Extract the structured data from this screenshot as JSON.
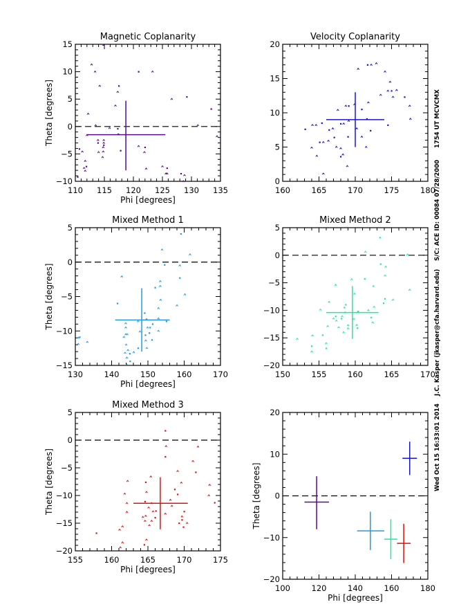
{
  "side_annotation": {
    "timestamp": "Wed Oct 15 16:33:01 2014",
    "author": "J.C. Kasper (jkasper@cfa.harvard.edu)",
    "spacecraft": "S/C: ACE ID: 00084 07/28/2000",
    "time": "1754 UT MCVCMX"
  },
  "chart_data": [
    {
      "type": "scatter",
      "title": "Magnetic Coplanarity",
      "xlabel": "Phi [degrees]",
      "ylabel": "Theta [degrees]",
      "xlim": [
        110,
        135
      ],
      "ylim": [
        -10,
        15
      ],
      "xticks": [
        110,
        115,
        120,
        125,
        130,
        135
      ],
      "xminor": 1,
      "yticks": [
        -10,
        -5,
        0,
        5,
        10,
        15
      ],
      "yminor": 1,
      "color": "#5a0a8a",
      "zero_line": true,
      "mean": {
        "x": 118.7,
        "y": -1.5,
        "xrange": [
          112.0,
          125.5
        ],
        "yrange": [
          -8.0,
          4.7
        ]
      },
      "points": [
        [
          114.8,
          14.9
        ],
        [
          112.8,
          11.3
        ],
        [
          113.4,
          10.0
        ],
        [
          120.9,
          10.0
        ],
        [
          123.3,
          10.0
        ],
        [
          114.2,
          7.4
        ],
        [
          117.5,
          7.4
        ],
        [
          117.3,
          6.3
        ],
        [
          126.6,
          5.0
        ],
        [
          129.2,
          5.4
        ],
        [
          116.9,
          3.8
        ],
        [
          112.2,
          2.3
        ],
        [
          133.4,
          3.2
        ],
        [
          113.5,
          0.2
        ],
        [
          115.9,
          -0.3
        ],
        [
          117.3,
          -0.4
        ],
        [
          131.1,
          0.2
        ],
        [
          112.0,
          -1.6
        ],
        [
          117.4,
          -1.4
        ],
        [
          134.4,
          -1.8
        ],
        [
          113.9,
          -2.5
        ],
        [
          113.9,
          -3.0
        ],
        [
          114.9,
          -2.5
        ],
        [
          114.9,
          -3.0
        ],
        [
          114.9,
          -3.4
        ],
        [
          114.8,
          -3.8
        ],
        [
          120.9,
          -3.6
        ],
        [
          122.0,
          -3.8
        ],
        [
          114.0,
          -4.7
        ],
        [
          114.8,
          -4.6
        ],
        [
          117.8,
          -4.4
        ],
        [
          121.9,
          -4.7
        ],
        [
          114.7,
          -5.6
        ],
        [
          110.7,
          -4.1
        ],
        [
          111.2,
          -4.6
        ],
        [
          111.7,
          -6.3
        ],
        [
          111.9,
          -7.3
        ],
        [
          111.5,
          -7.6
        ],
        [
          111.7,
          -8.1
        ],
        [
          110.4,
          -9.2
        ],
        [
          122.2,
          -7.7
        ],
        [
          125.0,
          -7.3
        ],
        [
          125.8,
          -7.6
        ],
        [
          125.6,
          -8.6
        ],
        [
          125.8,
          -8.6
        ],
        [
          128.2,
          -8.6
        ],
        [
          128.8,
          -8.9
        ],
        [
          128.6,
          -10.0
        ]
      ]
    },
    {
      "type": "scatter",
      "title": "Velocity Coplanarity",
      "xlabel": "",
      "ylabel": "",
      "xlim": [
        160,
        180
      ],
      "ylim": [
        0,
        20
      ],
      "xticks": [
        160,
        165,
        170,
        175,
        180
      ],
      "xminor": 1,
      "yticks": [
        0,
        5,
        10,
        15,
        20
      ],
      "yminor": 1,
      "color": "#1414d2",
      "zero_line": false,
      "mean": {
        "x": 170.0,
        "y": 9.0,
        "xrange": [
          166.0,
          174.0
        ],
        "yrange": [
          5.0,
          13.0
        ]
      },
      "points": [
        [
          163.1,
          7.6
        ],
        [
          164.1,
          8.2
        ],
        [
          164.6,
          8.2
        ],
        [
          165.4,
          8.5
        ],
        [
          164.0,
          4.9
        ],
        [
          164.7,
          3.7
        ],
        [
          165.1,
          5.7
        ],
        [
          165.6,
          5.7
        ],
        [
          165.6,
          1.1
        ],
        [
          166.4,
          7.5
        ],
        [
          166.9,
          7.7
        ],
        [
          166.3,
          5.9
        ],
        [
          167.1,
          6.4
        ],
        [
          167.4,
          5.0
        ],
        [
          167.6,
          10.4
        ],
        [
          168.0,
          8.4
        ],
        [
          168.4,
          8.4
        ],
        [
          168.7,
          11.0
        ],
        [
          169.1,
          11.0
        ],
        [
          169.1,
          8.8
        ],
        [
          168.0,
          4.8
        ],
        [
          168.0,
          3.6
        ],
        [
          168.3,
          3.9
        ],
        [
          168.9,
          2.2
        ],
        [
          169.0,
          6.5
        ],
        [
          169.9,
          11.2
        ],
        [
          170.2,
          7.7
        ],
        [
          170.9,
          10.5
        ],
        [
          170.9,
          6.5
        ],
        [
          170.4,
          16.4
        ],
        [
          171.7,
          17.0
        ],
        [
          172.2,
          17.0
        ],
        [
          172.9,
          17.2
        ],
        [
          171.6,
          9.1
        ],
        [
          171.8,
          11.5
        ],
        [
          171.5,
          5.0
        ],
        [
          172.1,
          7.4
        ],
        [
          173.5,
          12.6
        ],
        [
          174.1,
          16.0
        ],
        [
          174.5,
          8.2
        ],
        [
          174.5,
          13.2
        ],
        [
          174.8,
          14.5
        ],
        [
          175.0,
          13.2
        ],
        [
          175.2,
          12.3
        ],
        [
          175.7,
          13.3
        ],
        [
          176.8,
          12.3
        ],
        [
          177.5,
          11.0
        ],
        [
          177.6,
          9.1
        ]
      ]
    },
    {
      "type": "scatter",
      "title": "Mixed Method 1",
      "xlabel": "Phi [degrees]",
      "ylabel": "Theta [degrees]",
      "xlim": [
        130,
        170
      ],
      "ylim": [
        -15,
        5
      ],
      "xticks": [
        130,
        140,
        150,
        160,
        170
      ],
      "xminor": 2,
      "yticks": [
        -15,
        -10,
        -5,
        0,
        5
      ],
      "yminor": 1,
      "color": "#1e9be6",
      "zero_line": true,
      "mean": {
        "x": 148.3,
        "y": -8.4,
        "xrange": [
          141.0,
          156.0
        ],
        "yrange": [
          -13.0,
          -3.8
        ]
      },
      "points": [
        [
          159.1,
          4.1
        ],
        [
          153.9,
          1.8
        ],
        [
          161.6,
          1.1
        ],
        [
          154.6,
          -0.4
        ],
        [
          158.8,
          -0.5
        ],
        [
          142.8,
          -2.1
        ],
        [
          158.8,
          -2.3
        ],
        [
          153.4,
          -2.8
        ],
        [
          153.4,
          -3.5
        ],
        [
          152.0,
          -3.7
        ],
        [
          160.2,
          -4.7
        ],
        [
          153.5,
          -5.5
        ],
        [
          141.6,
          -6.0
        ],
        [
          158.0,
          -6.3
        ],
        [
          152.9,
          -6.7
        ],
        [
          149.1,
          -7.4
        ],
        [
          149.6,
          -8.3
        ],
        [
          152.9,
          -8.2
        ],
        [
          155.1,
          -8.6
        ],
        [
          143.9,
          -8.9
        ],
        [
          147.3,
          -8.6
        ],
        [
          151.3,
          -9.0
        ],
        [
          143.9,
          -9.5
        ],
        [
          149.9,
          -9.5
        ],
        [
          150.6,
          -9.5
        ],
        [
          147.8,
          -10.1
        ],
        [
          152.9,
          -10.0
        ],
        [
          150.4,
          -10.3
        ],
        [
          143.9,
          -10.5
        ],
        [
          144.3,
          -10.5
        ],
        [
          149.3,
          -10.6
        ],
        [
          143.4,
          -10.9
        ],
        [
          149.4,
          -11.4
        ],
        [
          151.1,
          -11.3
        ],
        [
          144.0,
          -12.0
        ],
        [
          149.7,
          -12.5
        ],
        [
          147.3,
          -12.5
        ],
        [
          144.5,
          -12.8
        ],
        [
          146.1,
          -13.1
        ],
        [
          145.0,
          -13.3
        ],
        [
          143.7,
          -13.2
        ],
        [
          144.2,
          -13.9
        ],
        [
          145.1,
          -14.4
        ],
        [
          144.2,
          -14.9
        ],
        [
          130.8,
          -11.0
        ],
        [
          131.2,
          -10.9
        ],
        [
          130.8,
          -11.9
        ],
        [
          133.3,
          -11.6
        ]
      ]
    },
    {
      "type": "scatter",
      "title": "Mixed Method 2",
      "xlabel": "",
      "ylabel": "",
      "xlim": [
        150,
        170
      ],
      "ylim": [
        -20,
        5
      ],
      "xticks": [
        150,
        155,
        160,
        165,
        170
      ],
      "xminor": 1,
      "yticks": [
        -20,
        -15,
        -10,
        -5,
        0,
        5
      ],
      "yminor": 1,
      "color": "#1eeb9b",
      "zero_line": true,
      "mean": {
        "x": 159.6,
        "y": -10.4,
        "xrange": [
          156.0,
          163.2
        ],
        "yrange": [
          -15.2,
          -5.6
        ]
      },
      "points": [
        [
          163.4,
          3.2
        ],
        [
          161.4,
          0.6
        ],
        [
          167.2,
          0.1
        ],
        [
          163.5,
          -1.6
        ],
        [
          164.2,
          -2.1
        ],
        [
          164.1,
          -3.7
        ],
        [
          161.3,
          -4.3
        ],
        [
          159.5,
          -4.4
        ],
        [
          157.3,
          -5.4
        ],
        [
          162.5,
          -5.6
        ],
        [
          167.5,
          -6.3
        ],
        [
          159.9,
          -7.0
        ],
        [
          164.1,
          -7.9
        ],
        [
          165.2,
          -8.1
        ],
        [
          156.4,
          -8.5
        ],
        [
          163.9,
          -8.7
        ],
        [
          158.7,
          -9.0
        ],
        [
          162.6,
          -9.4
        ],
        [
          158.5,
          -9.5
        ],
        [
          155.2,
          -9.9
        ],
        [
          158.6,
          -10.4
        ],
        [
          160.4,
          -10.2
        ],
        [
          160.3,
          -10.4
        ],
        [
          161.8,
          -10.0
        ],
        [
          157.3,
          -11.1
        ],
        [
          157.0,
          -11.5
        ],
        [
          158.2,
          -11.1
        ],
        [
          158.1,
          -11.5
        ],
        [
          157.4,
          -11.9
        ],
        [
          159.8,
          -11.6
        ],
        [
          162.2,
          -11.3
        ],
        [
          162.4,
          -12.2
        ],
        [
          157.7,
          -13.1
        ],
        [
          159.0,
          -12.7
        ],
        [
          160.2,
          -12.7
        ],
        [
          159.0,
          -13.3
        ],
        [
          160.3,
          -13.2
        ],
        [
          156.2,
          -12.9
        ],
        [
          158.4,
          -14.0
        ],
        [
          155.5,
          -14.5
        ],
        [
          154.1,
          -14.6
        ],
        [
          152.0,
          -15.2
        ],
        [
          154.0,
          -16.5
        ],
        [
          154.0,
          -17.5
        ],
        [
          156.0,
          -16.0
        ],
        [
          156.0,
          -16.9
        ]
      ]
    },
    {
      "type": "scatter",
      "title": "Mixed Method 3",
      "xlabel": "Phi [degrees]",
      "ylabel": "Theta [degrees]",
      "xlim": [
        155,
        175
      ],
      "ylim": [
        -20,
        5
      ],
      "xticks": [
        155,
        160,
        165,
        170,
        175
      ],
      "xminor": 1,
      "yticks": [
        -20,
        -15,
        -10,
        -5,
        0,
        5
      ],
      "yminor": 1,
      "color": "#e01010",
      "zero_line": true,
      "mean": {
        "x": 166.7,
        "y": -11.4,
        "xrange": [
          163.0,
          170.5
        ],
        "yrange": [
          -16.1,
          -6.7
        ]
      },
      "points": [
        [
          167.4,
          1.7
        ],
        [
          167.5,
          -1.1
        ],
        [
          171.9,
          -1.2
        ],
        [
          167.4,
          -3.0
        ],
        [
          171.2,
          -3.8
        ],
        [
          169.1,
          -5.6
        ],
        [
          171.6,
          -5.8
        ],
        [
          165.4,
          -6.6
        ],
        [
          162.2,
          -7.4
        ],
        [
          164.7,
          -7.6
        ],
        [
          169.6,
          -7.7
        ],
        [
          173.5,
          -8.1
        ],
        [
          168.7,
          -8.9
        ],
        [
          164.8,
          -9.4
        ],
        [
          161.8,
          -9.7
        ],
        [
          169.1,
          -9.8
        ],
        [
          173.4,
          -10.0
        ],
        [
          168.1,
          -10.8
        ],
        [
          164.6,
          -11.1
        ],
        [
          165.5,
          -11.4
        ],
        [
          162.1,
          -11.4
        ],
        [
          174.2,
          -11.3
        ],
        [
          168.3,
          -11.9
        ],
        [
          165.1,
          -12.2
        ],
        [
          166.1,
          -12.8
        ],
        [
          165.7,
          -12.9
        ],
        [
          162.1,
          -13.0
        ],
        [
          170.0,
          -12.9
        ],
        [
          167.4,
          -13.3
        ],
        [
          164.7,
          -13.7
        ],
        [
          166.0,
          -14.0
        ],
        [
          169.7,
          -13.8
        ],
        [
          164.3,
          -13.9
        ],
        [
          169.7,
          -14.4
        ],
        [
          164.6,
          -14.6
        ],
        [
          165.5,
          -14.6
        ],
        [
          169.3,
          -15.0
        ],
        [
          170.4,
          -15.0
        ],
        [
          165.2,
          -15.4
        ],
        [
          169.9,
          -15.7
        ],
        [
          161.5,
          -15.6
        ],
        [
          161.1,
          -16.2
        ],
        [
          157.9,
          -16.8
        ],
        [
          161.5,
          -18.5
        ],
        [
          164.8,
          -18.0
        ],
        [
          164.5,
          -18.9
        ],
        [
          161.2,
          -19.4
        ]
      ]
    },
    {
      "type": "scatter",
      "title": "",
      "xlabel": "Phi [degrees]",
      "ylabel": "Theta [degrees]",
      "xlim": [
        100,
        180
      ],
      "ylim": [
        -20,
        20
      ],
      "xticks": [
        100,
        120,
        140,
        160,
        180
      ],
      "xminor": 4,
      "yticks": [
        -20,
        -10,
        0,
        10,
        20
      ],
      "yminor": 2,
      "zero_line": true,
      "summary": [
        {
          "name": "Magnetic Coplanarity",
          "color": "#5a0a8a",
          "x": 118.7,
          "y": -1.5,
          "xrange": [
            112.0,
            125.5
          ],
          "yrange": [
            -8.0,
            4.7
          ]
        },
        {
          "name": "Velocity Coplanarity",
          "color": "#1414d2",
          "x": 170.0,
          "y": 9.0,
          "xrange": [
            166.0,
            174.0
          ],
          "yrange": [
            5.0,
            13.0
          ]
        },
        {
          "name": "Mixed Method 1",
          "color": "#1e9be6",
          "x": 148.3,
          "y": -8.4,
          "xrange": [
            141.0,
            156.0
          ],
          "yrange": [
            -13.0,
            -3.8
          ]
        },
        {
          "name": "Mixed Method 2",
          "color": "#1eeb9b",
          "x": 159.6,
          "y": -10.4,
          "xrange": [
            156.0,
            163.2
          ],
          "yrange": [
            -15.2,
            -5.6
          ]
        },
        {
          "name": "Mixed Method 3",
          "color": "#e01010",
          "x": 166.7,
          "y": -11.4,
          "xrange": [
            163.0,
            170.5
          ],
          "yrange": [
            -16.1,
            -6.7
          ]
        }
      ]
    }
  ]
}
